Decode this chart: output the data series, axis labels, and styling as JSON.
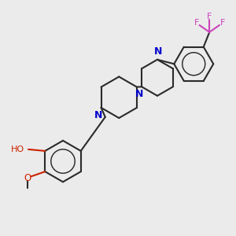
{
  "bg_color": "#ebebeb",
  "bond_color": "#2a2a2a",
  "n_color": "#0000cc",
  "o_color": "#cc2200",
  "f_color": "#cc44bb",
  "figsize": [
    3.0,
    3.0
  ],
  "dpi": 100,
  "xlim": [
    -1.0,
    11.0
  ],
  "ylim": [
    -1.0,
    11.0
  ]
}
